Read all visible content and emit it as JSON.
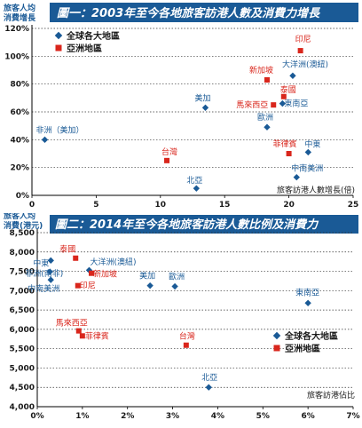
{
  "colors": {
    "world": "#1a5a96",
    "asia": "#d9261c",
    "title_bg": "#1a5a96",
    "grid": "#333333"
  },
  "chart_data": [
    {
      "type": "scatter",
      "title": "圖一：2003年至今各地旅客訪港人數及消費力增長",
      "ylabel": "旅客人均消費增長",
      "xlabel": "旅客訪港人數增長(倍)",
      "xlim": [
        0,
        25
      ],
      "ylim": [
        0,
        120
      ],
      "xticks": [
        0,
        5,
        10,
        15,
        20,
        25
      ],
      "yticks": [
        "0%",
        "20%",
        "40%",
        "60%",
        "80%",
        "100%",
        "120%"
      ],
      "ytick_values": [
        0,
        20,
        40,
        60,
        80,
        100,
        120
      ],
      "grid": true,
      "legend_position": "top-left",
      "series": [
        {
          "name": "全球各大地區",
          "marker": "diamond",
          "points": [
            {
              "label": "非洲（美加）",
              "x": 1.0,
              "y": 40
            },
            {
              "label": "美加",
              "x": 13.5,
              "y": 63
            },
            {
              "label": "北亞",
              "x": 12.8,
              "y": 5
            },
            {
              "label": "歐洲",
              "x": 18.3,
              "y": 49
            },
            {
              "label": "大洋洲(澳紐)",
              "x": 20.3,
              "y": 86
            },
            {
              "label": "東南亞",
              "x": 19.5,
              "y": 66
            },
            {
              "label": "中東",
              "x": 21.5,
              "y": 31
            },
            {
              "label": "中南美洲",
              "x": 20.6,
              "y": 13
            }
          ]
        },
        {
          "name": "亞洲地區",
          "marker": "square",
          "points": [
            {
              "label": "印尼",
              "x": 20.9,
              "y": 104
            },
            {
              "label": "新加坡",
              "x": 18.3,
              "y": 83
            },
            {
              "label": "泰國",
              "x": 19.6,
              "y": 71
            },
            {
              "label": "馬來西亞",
              "x": 18.8,
              "y": 65
            },
            {
              "label": "菲律賓",
              "x": 20.0,
              "y": 30
            },
            {
              "label": "台灣",
              "x": 10.5,
              "y": 25
            }
          ]
        }
      ]
    },
    {
      "type": "scatter",
      "title": "圖二：2014年至今各地旅客訪港人數比例及消費力",
      "ylabel": "旅客人均消費(港元)",
      "xlabel": "旅客訪港佔比",
      "xlim": [
        0,
        7
      ],
      "ylim": [
        4000,
        8500
      ],
      "xticks": [
        "0%",
        "1%",
        "2%",
        "3%",
        "4%",
        "5%",
        "6%",
        "7%"
      ],
      "xtick_values": [
        0,
        1,
        2,
        3,
        4,
        5,
        6,
        7
      ],
      "yticks": [
        "4,000",
        "4,500",
        "5,000",
        "5,500",
        "6,000",
        "6,500",
        "7,000",
        "7,500",
        "8,000",
        "8,500"
      ],
      "ytick_values": [
        4000,
        4500,
        5000,
        5500,
        6000,
        6500,
        7000,
        7500,
        8000,
        8500
      ],
      "grid": true,
      "legend_position": "bottom-right",
      "series": [
        {
          "name": "全球各大地區",
          "marker": "diamond",
          "points": [
            {
              "label": "中東",
              "x": 0.3,
              "y": 7780
            },
            {
              "label": "非洲(南非)",
              "x": 0.28,
              "y": 7490
            },
            {
              "label": "中南美洲",
              "x": 0.3,
              "y": 7280
            },
            {
              "label": "大洋洲(澳紐)",
              "x": 1.15,
              "y": 7530
            },
            {
              "label": "美加",
              "x": 2.5,
              "y": 7130
            },
            {
              "label": "歐洲",
              "x": 3.05,
              "y": 7110
            },
            {
              "label": "東南亞",
              "x": 6.0,
              "y": 6680
            },
            {
              "label": "北亞",
              "x": 3.8,
              "y": 4500
            }
          ]
        },
        {
          "name": "亞洲地區",
          "marker": "square",
          "points": [
            {
              "label": "泰國",
              "x": 0.85,
              "y": 7840
            },
            {
              "label": "印尼",
              "x": 0.9,
              "y": 7130
            },
            {
              "label": "新加坡",
              "x": 1.2,
              "y": 7450
            },
            {
              "label": "馬來西亞",
              "x": 0.92,
              "y": 5960
            },
            {
              "label": "菲律賓",
              "x": 1.0,
              "y": 5830
            },
            {
              "label": "台灣",
              "x": 3.3,
              "y": 5590
            }
          ]
        }
      ]
    }
  ],
  "ui": {
    "chart1_ylabel_line1": "旅客人均",
    "chart1_ylabel_line2": "消費增長",
    "chart2_ylabel_line1": "旅客人均",
    "chart2_ylabel_line2": "消費(港元)"
  }
}
